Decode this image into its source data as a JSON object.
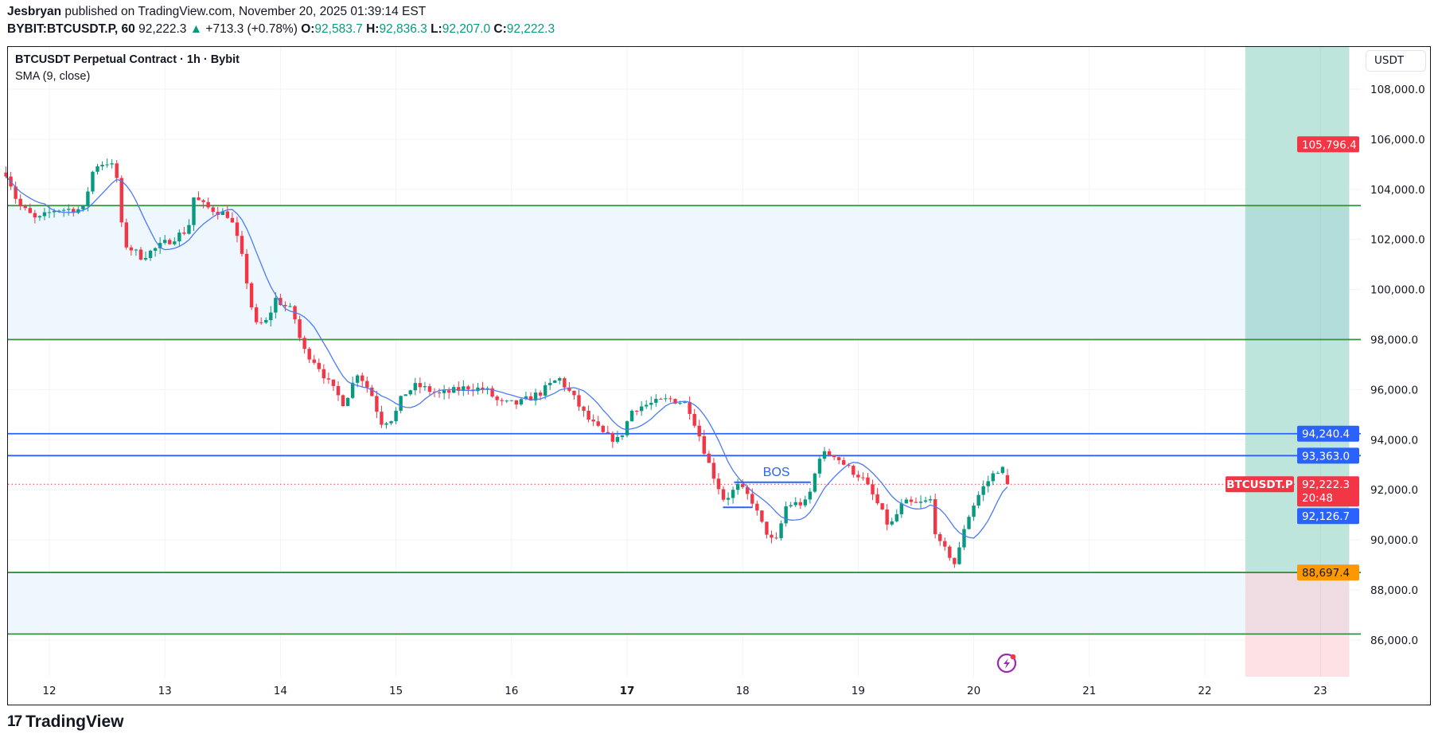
{
  "header": {
    "author": "Jesbryan",
    "published": "published on TradingView.com, November 20, 2025 01:39:14 EST",
    "symbol": "BYBIT:BTCUSDT.P, 60",
    "last": "92,222.3",
    "change": "+713.3 (+0.78%)",
    "o_label": "O:",
    "o": "92,583.7",
    "h_label": "H:",
    "h": "92,836.3",
    "l_label": "L:",
    "l": "92,207.0",
    "c_label": "C:",
    "c": "92,222.3"
  },
  "chart": {
    "title": "BTCUSDT Perpetual Contract · 1h · Bybit",
    "indicator": "SMA (9, close)",
    "currency": "USDT",
    "bos_label": "BOS",
    "symbol_tag": "BTCUSDT.P",
    "countdown": "20:48",
    "alert_icon": "flash-alert-icon"
  },
  "footer": {
    "logo": "TradingView"
  },
  "colors": {
    "up": "#089981",
    "down": "#f23645",
    "sma": "#4b7bf5",
    "level_blue": "#2962ff",
    "level_green": "#388e3c",
    "zone": "#eef6fe",
    "target": "#bee5dc",
    "stop": "#fde1e4",
    "entry_label": "#ff9800"
  },
  "chart_data": {
    "type": "candlestick",
    "interval": "1h",
    "ylim": [
      84500,
      109500
    ],
    "xlim": [
      11.6,
      23.4
    ],
    "grid": true,
    "y_ticks": [
      "108,000.0",
      "106,000.0",
      "104,000.0",
      "102,000.0",
      "100,000.0",
      "98,000.0",
      "96,000.0",
      "94,000.0",
      "92,000.0",
      "90,000.0",
      "88,000.0",
      "86,000.0"
    ],
    "y_tick_values": [
      108000,
      106000,
      104000,
      102000,
      100000,
      98000,
      96000,
      94000,
      92000,
      90000,
      88000,
      86000
    ],
    "x_ticks": [
      "12",
      "13",
      "14",
      "15",
      "16",
      "17",
      "18",
      "19",
      "20",
      "21",
      "22",
      "23"
    ],
    "x_tick_days": [
      12,
      13,
      14,
      15,
      16,
      17,
      18,
      19,
      20,
      21,
      22,
      23
    ],
    "x_tick_bold": "17",
    "approx_price_path_day_price": [
      [
        11.63,
        104670
      ],
      [
        11.73,
        103400
      ],
      [
        11.89,
        102760
      ],
      [
        12.05,
        103200
      ],
      [
        12.29,
        103200
      ],
      [
        12.39,
        104960
      ],
      [
        12.52,
        105100
      ],
      [
        12.58,
        104600
      ],
      [
        12.64,
        101850
      ],
      [
        12.8,
        101300
      ],
      [
        13.0,
        101850
      ],
      [
        13.2,
        102400
      ],
      [
        13.25,
        103680
      ],
      [
        13.35,
        103300
      ],
      [
        13.56,
        102950
      ],
      [
        13.65,
        101660
      ],
      [
        13.73,
        99830
      ],
      [
        13.78,
        98550
      ],
      [
        13.89,
        98730
      ],
      [
        13.95,
        99650
      ],
      [
        14.11,
        99100
      ],
      [
        14.19,
        97630
      ],
      [
        14.31,
        97080
      ],
      [
        14.43,
        96170
      ],
      [
        14.55,
        95440
      ],
      [
        14.67,
        96720
      ],
      [
        14.79,
        95800
      ],
      [
        14.87,
        94700
      ],
      [
        14.98,
        94880
      ],
      [
        15.06,
        95800
      ],
      [
        15.18,
        96170
      ],
      [
        15.38,
        95800
      ],
      [
        15.62,
        96100
      ],
      [
        15.78,
        95990
      ],
      [
        15.9,
        95440
      ],
      [
        16.06,
        95440
      ],
      [
        16.25,
        95880
      ],
      [
        16.41,
        96460
      ],
      [
        16.53,
        95730
      ],
      [
        16.65,
        94880
      ],
      [
        16.81,
        94150
      ],
      [
        16.93,
        93970
      ],
      [
        17.05,
        95250
      ],
      [
        17.21,
        95440
      ],
      [
        17.37,
        95620
      ],
      [
        17.52,
        95440
      ],
      [
        17.6,
        94510
      ],
      [
        17.72,
        92870
      ],
      [
        17.84,
        91590
      ],
      [
        17.96,
        92140
      ],
      [
        18.08,
        91590
      ],
      [
        18.16,
        90670
      ],
      [
        18.28,
        89760
      ],
      [
        18.38,
        91410
      ],
      [
        18.56,
        91480
      ],
      [
        18.67,
        93420
      ],
      [
        18.79,
        93420
      ],
      [
        18.91,
        92870
      ],
      [
        19.03,
        92500
      ],
      [
        19.15,
        91590
      ],
      [
        19.27,
        90490
      ],
      [
        19.39,
        91480
      ],
      [
        19.51,
        91410
      ],
      [
        19.63,
        91590
      ],
      [
        19.68,
        89940
      ],
      [
        19.79,
        89390
      ],
      [
        19.85,
        88920
      ],
      [
        19.9,
        90300
      ],
      [
        19.98,
        91230
      ],
      [
        20.06,
        91960
      ],
      [
        20.18,
        92690
      ],
      [
        20.24,
        92950
      ],
      [
        20.29,
        92222.3
      ]
    ],
    "last_candle": {
      "open": 92583.7,
      "high": 92836.3,
      "low": 92207.0,
      "close": 92222.3
    },
    "sma_last": 92126.7,
    "horizontal_levels": [
      {
        "price": 103350,
        "color": "green"
      },
      {
        "price": 98000,
        "color": "green"
      },
      {
        "price": 94240.4,
        "color": "blue",
        "label": "94,240.4"
      },
      {
        "price": 93363.0,
        "color": "blue",
        "label": "93,363.0"
      },
      {
        "price": 88697.4,
        "color": "green",
        "label": "88,697.4"
      },
      {
        "price": 86240,
        "color": "green"
      }
    ],
    "zones": [
      [
        98000,
        103350
      ],
      [
        86240,
        88697.4
      ]
    ],
    "position": {
      "entry": 88697.4,
      "target_label": "105,796.4",
      "start_day": 22.35,
      "end_day": 23.25
    },
    "bos": {
      "price_upper": 92300,
      "price_lower": 91300,
      "day_start": 17.83,
      "day_end": 18.59
    },
    "axis_labels": {
      "target": "105,796.4",
      "last": "92,222.3",
      "sma": "92,126.7",
      "entry": "88,697.4",
      "l1": "94,240.4",
      "l2": "93,363.0"
    }
  }
}
